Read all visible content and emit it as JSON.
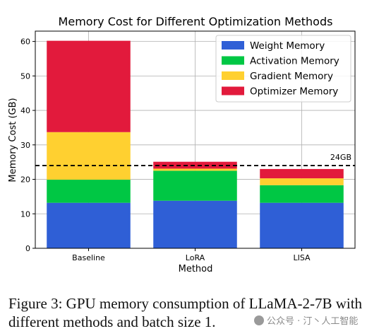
{
  "chart_data": {
    "type": "bar",
    "stacked": true,
    "title": "Memory Cost for Different Optimization Methods",
    "xlabel": "Method",
    "ylabel": "Memory Cost (GB)",
    "categories": [
      "Baseline",
      "LoRA",
      "LISA"
    ],
    "series": [
      {
        "name": "Weight Memory",
        "values": [
          13.2,
          13.8,
          13.2
        ],
        "color": "#2f5fd6"
      },
      {
        "name": "Activation Memory",
        "values": [
          6.7,
          8.7,
          5.1
        ],
        "color": "#00c744"
      },
      {
        "name": "Gradient Memory",
        "values": [
          13.8,
          0.6,
          2.0
        ],
        "color": "#ffd030"
      },
      {
        "name": "Optimizer Memory",
        "values": [
          26.5,
          2.0,
          2.7
        ],
        "color": "#e21a3c"
      }
    ],
    "ylim": [
      0,
      63
    ],
    "yticks": [
      0,
      10,
      20,
      30,
      40,
      50,
      60
    ],
    "grid": true,
    "legend_position": "top-right",
    "reference_line": {
      "value": 24,
      "label": "24GB",
      "style": "dashed",
      "color": "#000000"
    }
  },
  "caption": {
    "line1": "Figure 3: GPU memory consumption of LLaMA-2-7B",
    "line2": "with different methods and batch size 1."
  },
  "watermark": {
    "text": "公众号 · 汀丶人工智能"
  }
}
